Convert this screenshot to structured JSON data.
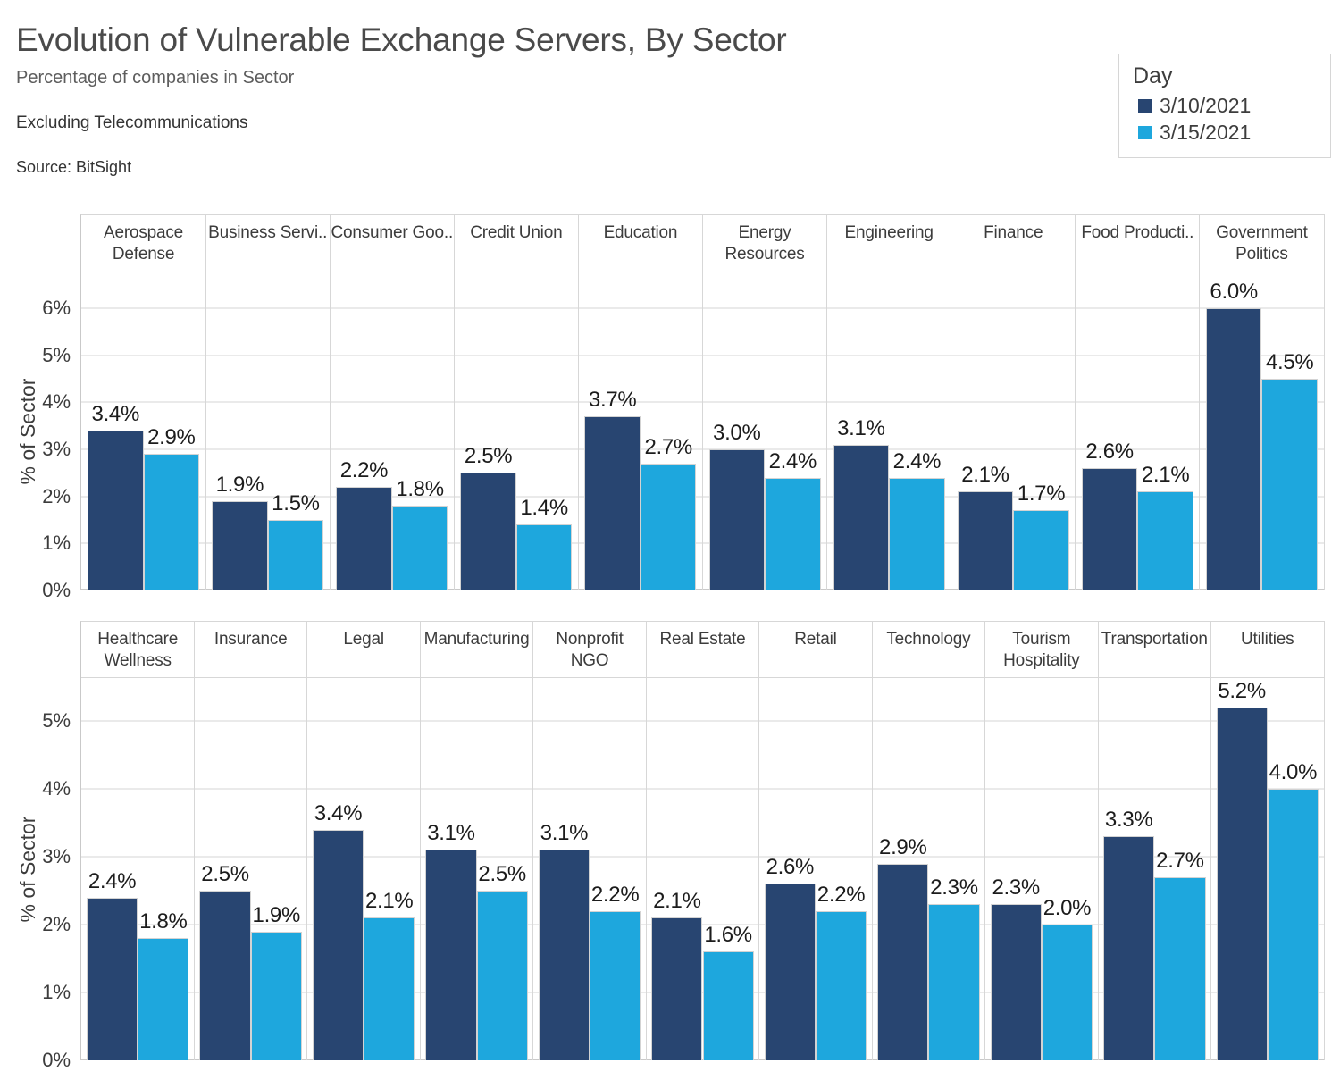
{
  "header": {
    "title": "Evolution of Vulnerable Exchange Servers, By Sector",
    "subtitle": "Percentage of companies in Sector",
    "note": "Excluding Telecommunications",
    "source": "Source: BitSight"
  },
  "legend": {
    "title": "Day",
    "items": [
      {
        "label": "3/10/2021",
        "color": "#284571"
      },
      {
        "label": "3/15/2021",
        "color": "#1ea7dd"
      }
    ]
  },
  "chart_data": {
    "type": "bar",
    "title": "Evolution of Vulnerable Exchange Servers, By Sector",
    "subtitle": "Percentage of companies in Sector",
    "note": "Excluding Telecommunications",
    "source": "Source: BitSight",
    "legend_title": "Day",
    "legend_position": "top-right",
    "series_names": [
      "3/10/2021",
      "3/15/2021"
    ],
    "series_colors": [
      "#284571",
      "#1ea7dd"
    ],
    "ylabel": "% of Sector",
    "value_format": "0.0%",
    "grid": true,
    "rows": [
      {
        "categories": [
          "Aerospace\nDefense",
          "Business Servi..",
          "Consumer Goo..",
          "Credit Union",
          "Education",
          "Energy\nResources",
          "Engineering",
          "Finance",
          "Food Producti..",
          "Government\nPolitics"
        ],
        "series": [
          {
            "name": "3/10/2021",
            "values": [
              3.4,
              1.9,
              2.2,
              2.5,
              3.7,
              3.0,
              3.1,
              2.1,
              2.6,
              6.0
            ]
          },
          {
            "name": "3/15/2021",
            "values": [
              2.9,
              1.5,
              1.8,
              1.4,
              2.7,
              2.4,
              2.4,
              1.7,
              2.1,
              4.5
            ]
          }
        ],
        "yticks": [
          "0%",
          "1%",
          "2%",
          "3%",
          "4%",
          "5%",
          "6%"
        ],
        "ylim": [
          0,
          6.8
        ]
      },
      {
        "categories": [
          "Healthcare\nWellness",
          "Insurance",
          "Legal",
          "Manufacturing",
          "Nonprofit\nNGO",
          "Real Estate",
          "Retail",
          "Technology",
          "Tourism\nHospitality",
          "Transportation",
          "Utilities"
        ],
        "series": [
          {
            "name": "3/10/2021",
            "values": [
              2.4,
              2.5,
              3.4,
              3.1,
              3.1,
              2.1,
              2.6,
              2.9,
              2.3,
              3.3,
              5.2
            ]
          },
          {
            "name": "3/15/2021",
            "values": [
              1.8,
              1.9,
              2.1,
              2.5,
              2.2,
              1.6,
              2.2,
              2.3,
              2.0,
              2.7,
              4.0
            ]
          }
        ],
        "yticks": [
          "0%",
          "1%",
          "2%",
          "3%",
          "4%",
          "5%"
        ],
        "ylim": [
          0,
          5.65
        ]
      }
    ]
  }
}
